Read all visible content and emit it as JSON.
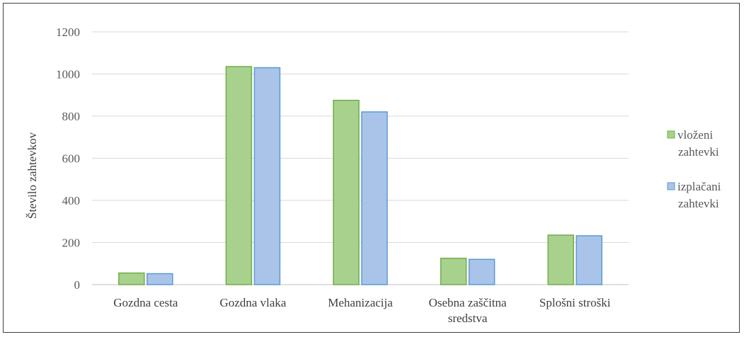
{
  "chart_data": {
    "type": "bar",
    "title": "",
    "xlabel": "",
    "ylabel": "Število zahtevkov",
    "ylim": [
      0,
      1200
    ],
    "yticks": [
      0,
      200,
      400,
      600,
      800,
      1000,
      1200
    ],
    "grid": true,
    "legend_position": "right",
    "categories": [
      [
        "Gozdna cesta"
      ],
      [
        "Gozdna vlaka"
      ],
      [
        "Mehanizacija"
      ],
      [
        "Osebna zaščitna",
        "sredstva"
      ],
      [
        "Splošni stroški"
      ]
    ],
    "series": [
      {
        "name": [
          "vloženi",
          "zahtevki"
        ],
        "color": "#a9d18e",
        "stroke": "#70ad47",
        "values": [
          55,
          1035,
          875,
          125,
          235
        ]
      },
      {
        "name": [
          "izplačani",
          "zahtevki"
        ],
        "color": "#a9c4e8",
        "stroke": "#5b9bd5",
        "values": [
          52,
          1030,
          820,
          120,
          232
        ]
      }
    ]
  }
}
